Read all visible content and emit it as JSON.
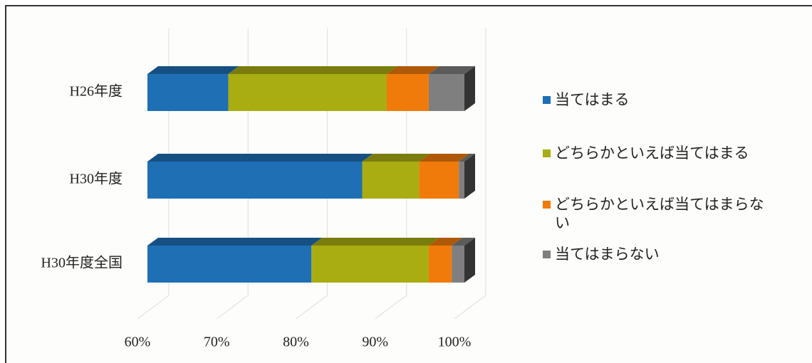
{
  "chart_data": {
    "type": "bar3d_stacked_horizontal",
    "categories": [
      "H26年度",
      "H30年度",
      "H30年度全国"
    ],
    "series": [
      {
        "name": "当てはまる",
        "color": "#1f6fb5",
        "values": [
          70.2,
          87.1,
          80.7
        ]
      },
      {
        "name": "どちらかといえば当てはまる",
        "color": "#a9ad12",
        "values": [
          20.0,
          7.2,
          14.8
        ]
      },
      {
        "name": "どちらかといえば当てはまらない",
        "color": "#f07b0a",
        "values": [
          5.3,
          5.0,
          2.9
        ]
      },
      {
        "name": "当てはまらない",
        "color": "#7f7f7f",
        "values": [
          4.5,
          0.7,
          1.6
        ]
      }
    ],
    "xlim": [
      60,
      100
    ],
    "xticks": [
      {
        "value": 60,
        "label": "60%"
      },
      {
        "value": 70,
        "label": "70%"
      },
      {
        "value": 80,
        "label": "80%"
      },
      {
        "value": 90,
        "label": "90%"
      },
      {
        "value": 100,
        "label": "100%"
      }
    ],
    "grid": true,
    "legend": "right"
  }
}
